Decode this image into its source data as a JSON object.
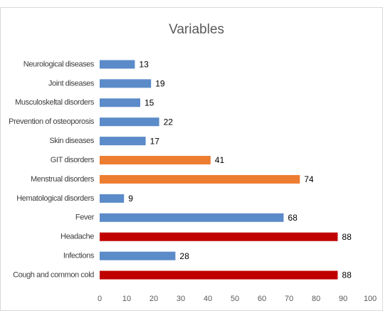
{
  "chart_data": {
    "type": "barh",
    "title": "Variables",
    "categories": [
      "Neurological diseases",
      "Joint diseases",
      "Musculoskeltal disorders",
      "Prevention of osteoporosis",
      "Skin diseases",
      "GIT disorders",
      "Menstrual disorders",
      "Hematological disorders",
      "Fever",
      "Headache",
      "Infections",
      "Cough and common cold"
    ],
    "values": [
      13,
      19,
      15,
      22,
      17,
      41,
      74,
      9,
      68,
      88,
      28,
      88
    ],
    "colors": [
      "#5b8bc9",
      "#5b8bc9",
      "#5b8bc9",
      "#5b8bc9",
      "#5b8bc9",
      "#ed7d31",
      "#ed7d31",
      "#5b8bc9",
      "#5b8bc9",
      "#c00000",
      "#5b8bc9",
      "#c00000"
    ],
    "xlim": [
      0,
      100
    ],
    "xticks": [
      0,
      10,
      20,
      30,
      40,
      50,
      60,
      70,
      80,
      90,
      100
    ],
    "grid": false
  }
}
